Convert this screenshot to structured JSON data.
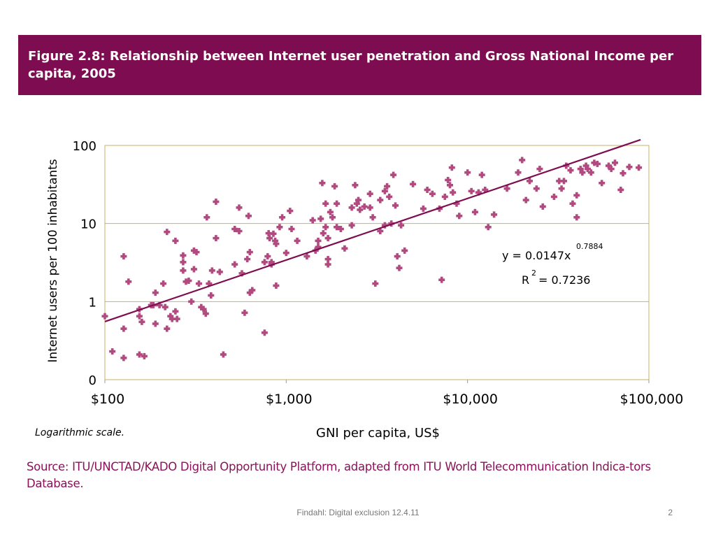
{
  "figure": {
    "title": "Figure 2.8:  Relationship between Internet user penetration and Gross National Income per capita, 2005"
  },
  "chart_data": {
    "type": "scatter",
    "title": "",
    "xlabel": "GNI per capita, US$",
    "ylabel": "Internet users per 100 inhabitants",
    "x_scale": "log",
    "y_scale": "log",
    "xlim": [
      100,
      100000
    ],
    "ylim": [
      0.1,
      100
    ],
    "x_ticks": [
      100,
      1000,
      10000,
      100000
    ],
    "x_tick_labels": [
      "$100",
      "$1,000",
      "$10,000",
      "$100,000"
    ],
    "y_ticks": [
      0.1,
      1,
      10,
      100
    ],
    "y_tick_labels": [
      "0",
      "1",
      "10",
      "100"
    ],
    "grid": "horizontal",
    "marker_color": "#b14a7f",
    "trend_color": "#7d0c50",
    "trendline": {
      "a": 0.0147,
      "b": 0.7884,
      "r2": 0.7236
    },
    "annotations": {
      "equation_base": "y = 0.0147x",
      "equation_exp": "0.7884",
      "r2_base": "R",
      "r2_sup": "2",
      "r2_value": "= 0.7236"
    },
    "points": [
      [
        100,
        0.65
      ],
      [
        110,
        0.23
      ],
      [
        127,
        3.8
      ],
      [
        127,
        0.45
      ],
      [
        127,
        0.19
      ],
      [
        135,
        1.8
      ],
      [
        155,
        0.8
      ],
      [
        155,
        0.65
      ],
      [
        155,
        0.21
      ],
      [
        160,
        0.55
      ],
      [
        165,
        0.2
      ],
      [
        180,
        0.9
      ],
      [
        185,
        0.9
      ],
      [
        190,
        1.3
      ],
      [
        190,
        0.52
      ],
      [
        200,
        0.9
      ],
      [
        210,
        1.7
      ],
      [
        215,
        0.85
      ],
      [
        220,
        7.8
      ],
      [
        220,
        0.45
      ],
      [
        230,
        0.65
      ],
      [
        235,
        0.6
      ],
      [
        245,
        6
      ],
      [
        245,
        0.75
      ],
      [
        250,
        0.6
      ],
      [
        270,
        3.9
      ],
      [
        270,
        3.2
      ],
      [
        270,
        2.5
      ],
      [
        280,
        1.8
      ],
      [
        290,
        1.85
      ],
      [
        300,
        1
      ],
      [
        310,
        4.5
      ],
      [
        310,
        2.6
      ],
      [
        320,
        4.3
      ],
      [
        330,
        1.7
      ],
      [
        340,
        0.85
      ],
      [
        350,
        0.8
      ],
      [
        360,
        0.7
      ],
      [
        365,
        12
      ],
      [
        375,
        1.7
      ],
      [
        385,
        1.2
      ],
      [
        390,
        2.5
      ],
      [
        410,
        19
      ],
      [
        410,
        6.5
      ],
      [
        430,
        2.4
      ],
      [
        450,
        0.21
      ],
      [
        520,
        8.5
      ],
      [
        520,
        3
      ],
      [
        550,
        16
      ],
      [
        550,
        8
      ],
      [
        570,
        2.3
      ],
      [
        590,
        0.72
      ],
      [
        610,
        3.5
      ],
      [
        620,
        12.5
      ],
      [
        630,
        4.3
      ],
      [
        630,
        1.3
      ],
      [
        650,
        1.4
      ],
      [
        760,
        3.2
      ],
      [
        760,
        0.4
      ],
      [
        790,
        3.8
      ],
      [
        800,
        7.5
      ],
      [
        810,
        6.5
      ],
      [
        830,
        3.2
      ],
      [
        830,
        3
      ],
      [
        850,
        7.4
      ],
      [
        870,
        6
      ],
      [
        880,
        5.5
      ],
      [
        880,
        1.6
      ],
      [
        920,
        9
      ],
      [
        950,
        12
      ],
      [
        1000,
        4.2
      ],
      [
        1050,
        14.5
      ],
      [
        1070,
        8.5
      ],
      [
        1150,
        6
      ],
      [
        1300,
        3.8
      ],
      [
        1400,
        11
      ],
      [
        1450,
        4.5
      ],
      [
        1500,
        5
      ],
      [
        1500,
        6
      ],
      [
        1550,
        11.5
      ],
      [
        1580,
        33
      ],
      [
        1600,
        7.5
      ],
      [
        1650,
        18
      ],
      [
        1650,
        9
      ],
      [
        1700,
        6.5
      ],
      [
        1700,
        3.5
      ],
      [
        1700,
        3
      ],
      [
        1750,
        14
      ],
      [
        1800,
        12
      ],
      [
        1850,
        30
      ],
      [
        1900,
        18
      ],
      [
        1900,
        9
      ],
      [
        2000,
        8.5
      ],
      [
        2100,
        4.8
      ],
      [
        2300,
        16
      ],
      [
        2300,
        9.5
      ],
      [
        2400,
        31
      ],
      [
        2450,
        18
      ],
      [
        2500,
        20
      ],
      [
        2550,
        15
      ],
      [
        2700,
        16.5
      ],
      [
        2900,
        24
      ],
      [
        2900,
        16
      ],
      [
        3000,
        12
      ],
      [
        3100,
        1.7
      ],
      [
        3300,
        20
      ],
      [
        3300,
        8
      ],
      [
        3500,
        26
      ],
      [
        3500,
        9.5
      ],
      [
        3600,
        30
      ],
      [
        3700,
        22
      ],
      [
        3800,
        10
      ],
      [
        3900,
        42
      ],
      [
        4000,
        17
      ],
      [
        4100,
        3.8
      ],
      [
        4200,
        2.7
      ],
      [
        4300,
        9.5
      ],
      [
        4500,
        4.5
      ],
      [
        5000,
        32
      ],
      [
        5700,
        15.5
      ],
      [
        6000,
        27
      ],
      [
        6400,
        24
      ],
      [
        7000,
        15.5
      ],
      [
        7200,
        1.9
      ],
      [
        7500,
        22
      ],
      [
        7800,
        36
      ],
      [
        8000,
        31
      ],
      [
        8200,
        52
      ],
      [
        8300,
        25
      ],
      [
        8700,
        18
      ],
      [
        9000,
        12.5
      ],
      [
        10000,
        45
      ],
      [
        10500,
        26
      ],
      [
        11000,
        14
      ],
      [
        11500,
        25
      ],
      [
        12000,
        42
      ],
      [
        12500,
        27
      ],
      [
        13000,
        9
      ],
      [
        14000,
        13
      ],
      [
        16500,
        28
      ],
      [
        19000,
        45
      ],
      [
        20000,
        65
      ],
      [
        21000,
        20
      ],
      [
        22000,
        35
      ],
      [
        24000,
        28
      ],
      [
        25000,
        50
      ],
      [
        26000,
        16.5
      ],
      [
        30000,
        22
      ],
      [
        32000,
        35
      ],
      [
        33000,
        28
      ],
      [
        34000,
        35
      ],
      [
        35000,
        55
      ],
      [
        37000,
        48
      ],
      [
        38000,
        18
      ],
      [
        40000,
        23
      ],
      [
        40000,
        12
      ],
      [
        42000,
        50
      ],
      [
        43000,
        45
      ],
      [
        45000,
        55
      ],
      [
        46000,
        50
      ],
      [
        48000,
        45
      ],
      [
        50000,
        60
      ],
      [
        52000,
        58
      ],
      [
        55000,
        33
      ],
      [
        60000,
        55
      ],
      [
        62000,
        50
      ],
      [
        65000,
        60
      ],
      [
        70000,
        27
      ],
      [
        72000,
        44
      ],
      [
        78000,
        53
      ],
      [
        88000,
        52
      ]
    ]
  },
  "notes": {
    "scale": "Logarithmic scale.",
    "source": "Source:  ITU/UNCTAD/KADO Digital Opportunity Platform, adapted from ITU World Telecommunication Indica-tors Database."
  },
  "footer": {
    "text": "Findahl: Digital exclusion 12.4.11",
    "page_number": "2"
  }
}
